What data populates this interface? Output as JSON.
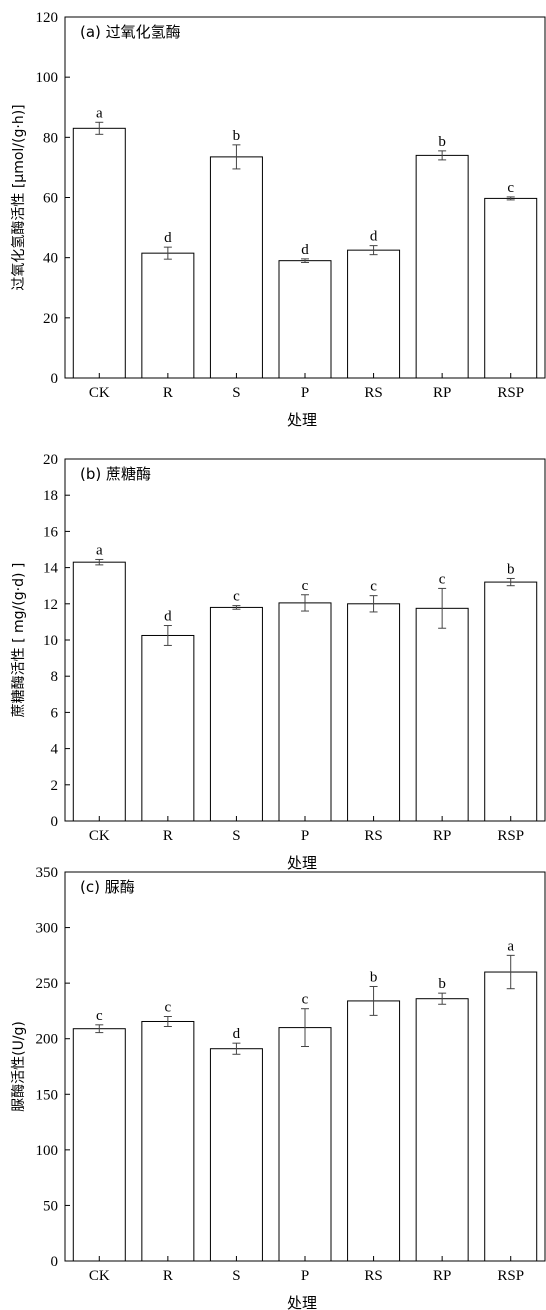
{
  "chart_data": [
    {
      "type": "bar",
      "title": "(a) 过氧化氢酶",
      "xlabel": "处理",
      "ylabel": "过氧化氢酶活性 [μmol/(g·h)]",
      "categories": [
        "CK",
        "R",
        "S",
        "P",
        "RS",
        "RP",
        "RSP"
      ],
      "values": [
        83,
        41.5,
        73.5,
        39,
        42.5,
        74,
        59.7
      ],
      "errors": [
        2,
        2,
        4,
        0.6,
        1.5,
        1.5,
        0.5
      ],
      "significance": [
        "a",
        "d",
        "b",
        "d",
        "d",
        "b",
        "c"
      ],
      "ylim": [
        0,
        120
      ],
      "yticks": [
        0,
        20,
        40,
        60,
        80,
        100,
        120
      ]
    },
    {
      "type": "bar",
      "title": "(b) 蔗糖酶",
      "xlabel": "处理",
      "ylabel": "蔗糖酶活性 [ mg/(g·d) ]",
      "categories": [
        "CK",
        "R",
        "S",
        "P",
        "RS",
        "RP",
        "RSP"
      ],
      "values": [
        14.3,
        10.25,
        11.8,
        12.05,
        12,
        11.75,
        13.2
      ],
      "errors": [
        0.15,
        0.55,
        0.1,
        0.45,
        0.45,
        1.1,
        0.2
      ],
      "significance": [
        "a",
        "d",
        "c",
        "c",
        "c",
        "c",
        "b"
      ],
      "ylim": [
        0,
        20
      ],
      "yticks": [
        0,
        2,
        4,
        6,
        8,
        10,
        12,
        14,
        16,
        18,
        20
      ]
    },
    {
      "type": "bar",
      "title": "(c) 脲酶",
      "xlabel": "处理",
      "ylabel": "脲酶活性(U/g)",
      "categories": [
        "CK",
        "R",
        "S",
        "P",
        "RS",
        "RP",
        "RSP"
      ],
      "values": [
        209,
        215.5,
        191,
        210,
        234,
        236,
        260
      ],
      "errors": [
        3.5,
        4.5,
        5,
        17,
        13,
        5,
        15
      ],
      "significance": [
        "c",
        "c",
        "d",
        "c",
        "b",
        "b",
        "a"
      ],
      "ylim": [
        0,
        350
      ],
      "yticks": [
        0,
        50,
        100,
        150,
        200,
        250,
        300,
        350
      ]
    }
  ]
}
